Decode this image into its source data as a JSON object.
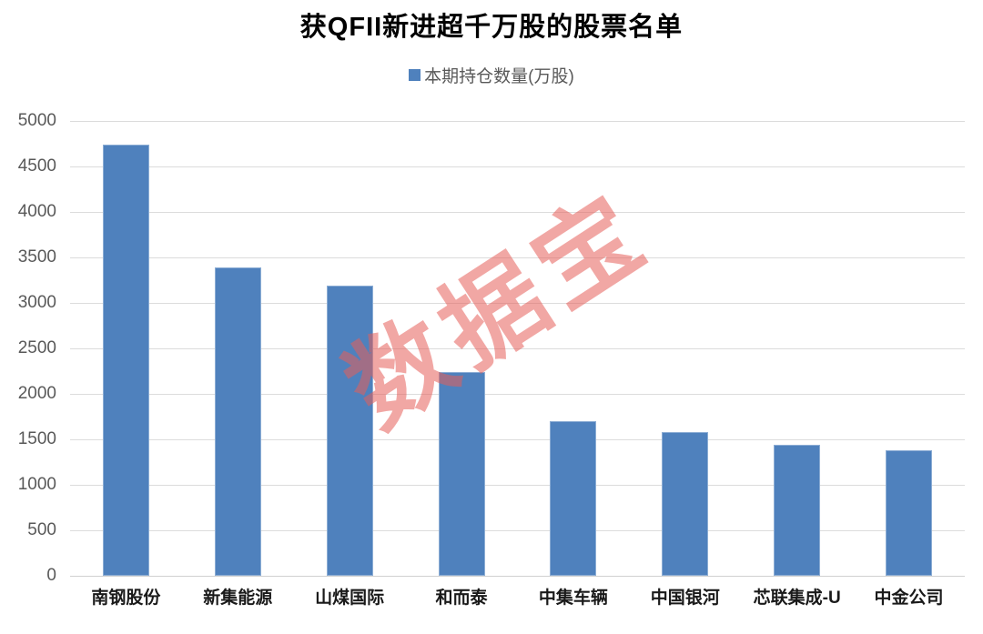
{
  "chart_data": {
    "type": "bar",
    "title": "获QFII新进超千万股的股票名单",
    "legend": [
      "本期持仓数量(万股)"
    ],
    "legend_position": "top",
    "categories": [
      "南钢股份",
      "新集能源",
      "山煤国际",
      "和而泰",
      "中集车辆",
      "中国银河",
      "芯联集成-U",
      "中金公司"
    ],
    "series": [
      {
        "name": "本期持仓数量(万股)",
        "values": [
          4740,
          3390,
          3190,
          2240,
          1700,
          1580,
          1440,
          1380
        ]
      }
    ],
    "values": [
      4740,
      3390,
      3190,
      2240,
      1700,
      1580,
      1440,
      1380
    ],
    "xlabel": "",
    "ylabel": "",
    "ylim": [
      0,
      5000
    ],
    "ytick_step": 500,
    "yticks": [
      0,
      500,
      1000,
      1500,
      2000,
      2500,
      3000,
      3500,
      4000,
      4500,
      5000
    ],
    "grid": true,
    "bar_color": "#4f81bd",
    "gridline_color": "#dcdcdc",
    "watermark": {
      "text": "数据宝",
      "color": "#e55f59",
      "rotation_deg": -33
    }
  }
}
